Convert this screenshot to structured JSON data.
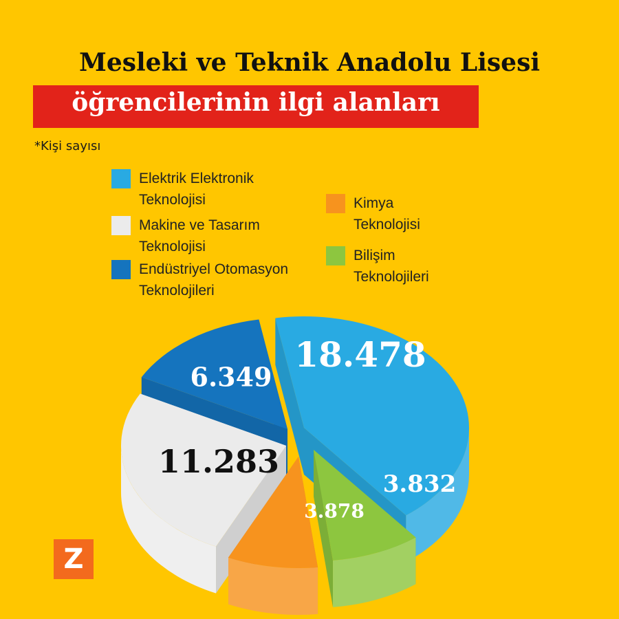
{
  "title_line1": "Mesleki ve Teknik Anadolu  Lisesi",
  "title_line2": "öğrencilerinin ilgi alanları",
  "note": "*Kişi sayısı",
  "logo_letter": "Z",
  "legend": [
    {
      "line1": "Elektrik Elektronik",
      "line2": "Teknolojisi",
      "color": "#29AAE2"
    },
    {
      "line1": "Makine ve Tasarım",
      "line2": "Teknolojisi",
      "color": "#EBEBEB"
    },
    {
      "line1": "Endüstriyel Otomasyon",
      "line2": "Teknolojileri",
      "color": "#1574BE"
    },
    {
      "line1": "Kimya",
      "line2": "Teknolojisi",
      "color": "#F7931E"
    },
    {
      "line1": "Bilişim",
      "line2": "Teknolojileri",
      "color": "#8DC63F"
    }
  ],
  "chart_data": {
    "type": "pie",
    "categories": [
      "Elektrik Elektronik Teknolojisi",
      "Bilişim Teknolojileri",
      "Kimya Teknolojisi",
      "Makine ve Tasarım Teknolojisi",
      "Endüstriyel Otomasyon Teknolojileri"
    ],
    "values": [
      18478,
      3832,
      3878,
      11283,
      6349
    ],
    "labels": [
      "18.478",
      "3.832",
      "3.878",
      "11.283",
      "6.349"
    ],
    "colors": [
      "#29AAE2",
      "#8DC63F",
      "#F7931E",
      "#EBEBEB",
      "#1574BE"
    ],
    "style": "3d-exploded"
  }
}
